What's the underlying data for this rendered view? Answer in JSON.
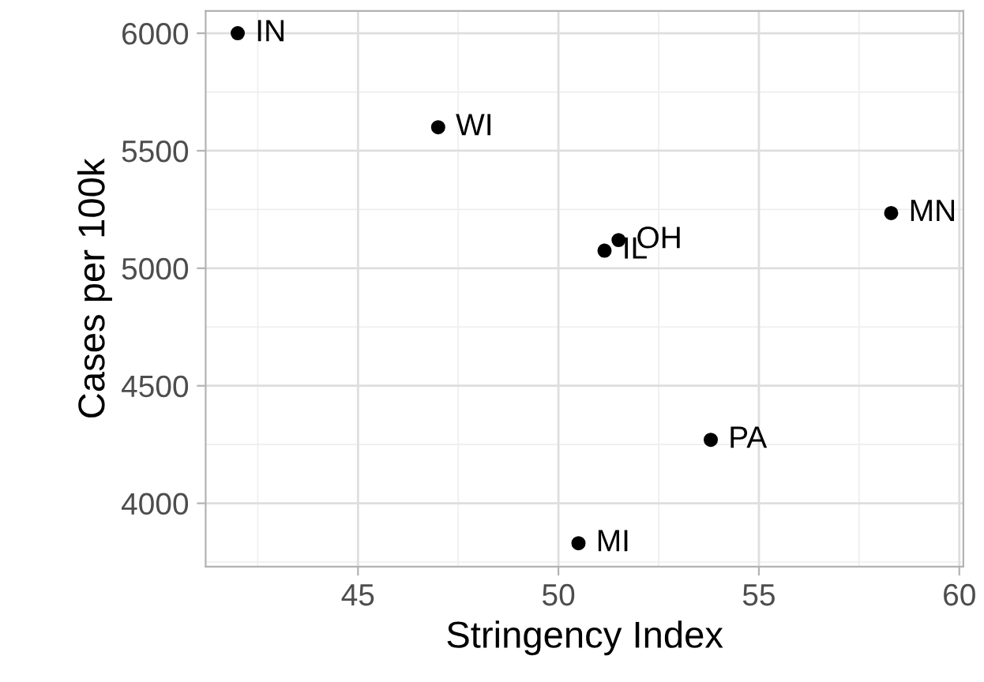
{
  "chart_data": {
    "type": "scatter",
    "xlabel": "Stringency Index",
    "ylabel": "Cases per 100k",
    "x": [
      42.0,
      47.0,
      51.5,
      51.15,
      58.3,
      53.8,
      50.5
    ],
    "series": [
      {
        "color": "#000000",
        "values": [
          6000,
          5600,
          5120,
          5075,
          5235,
          4270,
          3830
        ]
      }
    ],
    "annotations": [
      {
        "text": "IN",
        "x": 42.0,
        "y": 6000
      },
      {
        "text": "WI",
        "x": 47.0,
        "y": 5600
      },
      {
        "text": "OH",
        "x": 51.5,
        "y": 5120
      },
      {
        "text": "IL",
        "x": 51.15,
        "y": 5075
      },
      {
        "text": "MN",
        "x": 58.3,
        "y": 5235
      },
      {
        "text": "PA",
        "x": 53.8,
        "y": 4270
      },
      {
        "text": "MI",
        "x": 50.5,
        "y": 3830
      }
    ],
    "xlim": [
      41.2,
      60.1
    ],
    "ylim": [
      3730,
      6095
    ],
    "xticks": [
      45,
      50,
      55,
      60
    ],
    "yticks": [
      4000,
      4500,
      5000,
      5500,
      6000
    ],
    "grid": true,
    "marker": "circle",
    "legend": false
  }
}
